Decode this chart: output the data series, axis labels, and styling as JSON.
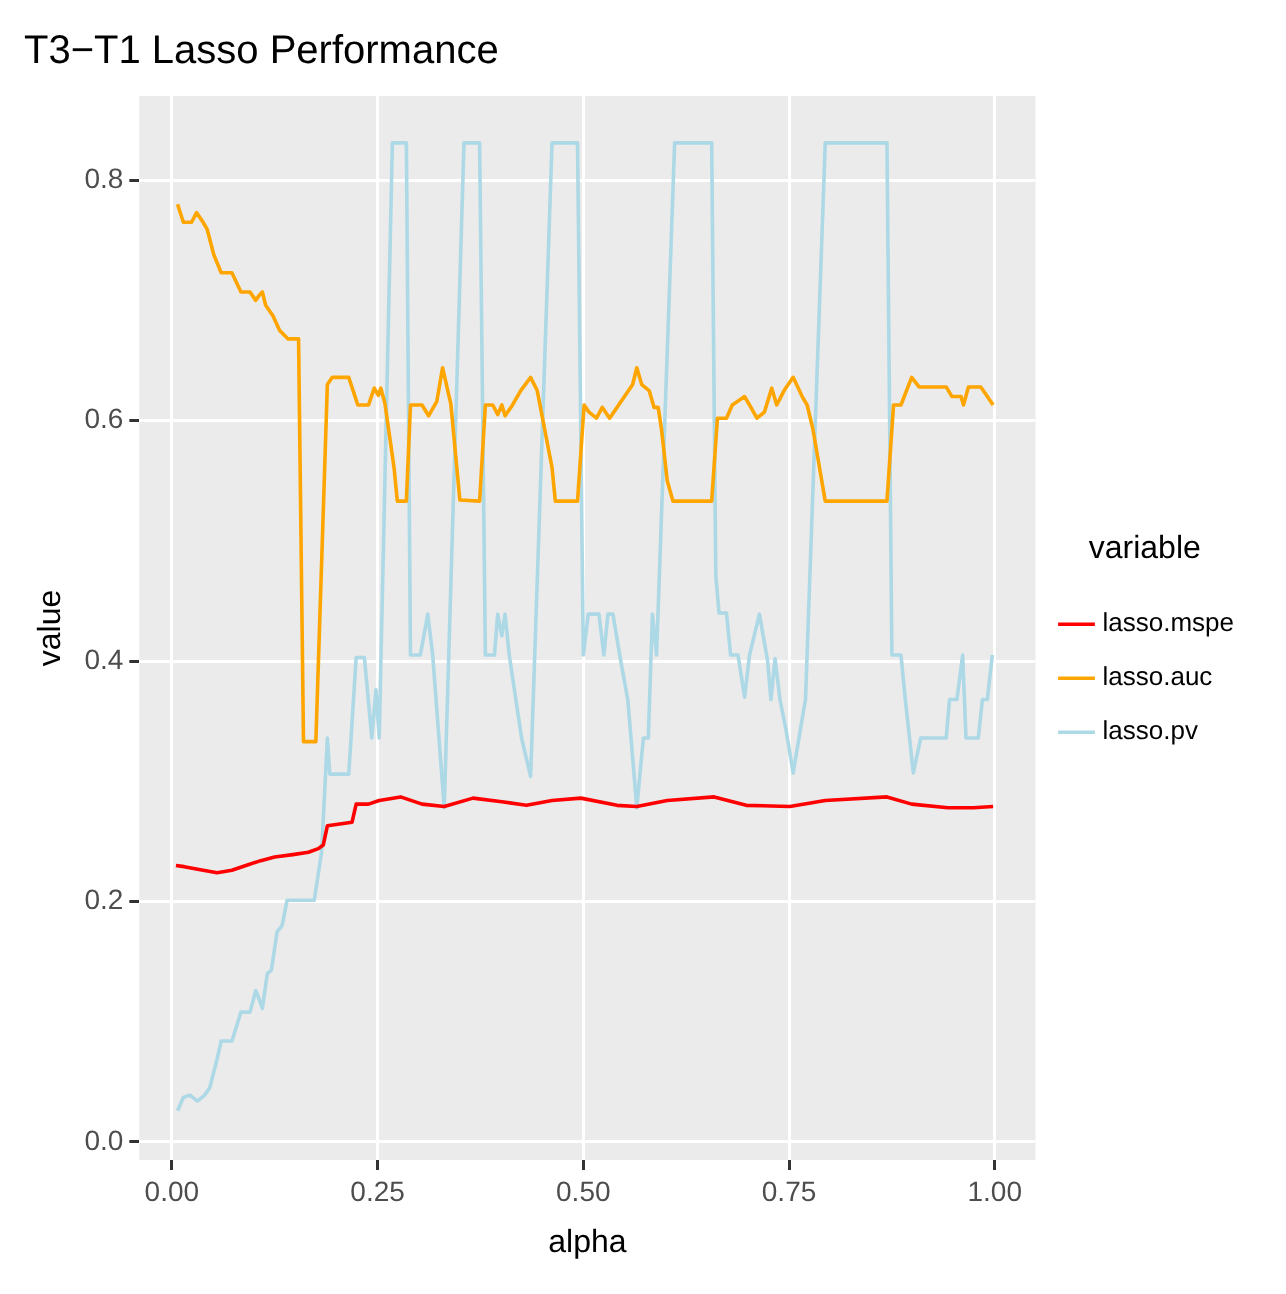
{
  "chart_data": {
    "type": "line",
    "title": "T3−T1 Lasso Performance",
    "xlabel": "alpha",
    "ylabel": "value",
    "legend_title": "variable",
    "legend": "right",
    "grid": true,
    "marker": "none",
    "xlim": [
      -0.0395,
      1.0495
    ],
    "ylim": [
      -0.015,
      0.87
    ],
    "xticks": [
      {
        "value": 0,
        "label": "0.00"
      },
      {
        "value": 0.25,
        "label": "0.25"
      },
      {
        "value": 0.5,
        "label": "0.50"
      },
      {
        "value": 0.75,
        "label": "0.75"
      },
      {
        "value": 1,
        "label": "1.00"
      }
    ],
    "yticks": [
      {
        "value": 0,
        "label": "0.0"
      },
      {
        "value": 0.2,
        "label": "0.2"
      },
      {
        "value": 0.4,
        "label": "0.4"
      },
      {
        "value": 0.6,
        "label": "0.6"
      },
      {
        "value": 0.8,
        "label": "0.8"
      }
    ],
    "series": [
      {
        "name": "lasso.mspe",
        "color": "#ff0000",
        "x": [
          0.005,
          0.015,
          0.038,
          0.055,
          0.073,
          0.09,
          0.108,
          0.125,
          0.147,
          0.166,
          0.178,
          0.184,
          0.189,
          0.219,
          0.224,
          0.239,
          0.252,
          0.278,
          0.304,
          0.331,
          0.366,
          0.401,
          0.431,
          0.462,
          0.497,
          0.541,
          0.565,
          0.602,
          0.659,
          0.698,
          0.751,
          0.794,
          0.869,
          0.899,
          0.943,
          0.974,
          0.998
        ],
        "values": [
          0.23,
          0.229,
          0.226,
          0.224,
          0.226,
          0.23,
          0.234,
          0.237,
          0.239,
          0.241,
          0.244,
          0.247,
          0.263,
          0.266,
          0.281,
          0.281,
          0.284,
          0.287,
          0.281,
          0.279,
          0.286,
          0.283,
          0.28,
          0.284,
          0.286,
          0.28,
          0.279,
          0.284,
          0.287,
          0.28,
          0.279,
          0.284,
          0.287,
          0.281,
          0.278,
          0.278,
          0.279
        ]
      },
      {
        "name": "lasso.auc",
        "color": "#ffa500",
        "x": [
          0.007,
          0.014,
          0.024,
          0.03,
          0.038,
          0.043,
          0.051,
          0.06,
          0.073,
          0.084,
          0.095,
          0.102,
          0.106,
          0.11,
          0.114,
          0.123,
          0.131,
          0.141,
          0.154,
          0.16,
          0.175,
          0.189,
          0.195,
          0.215,
          0.226,
          0.239,
          0.246,
          0.251,
          0.254,
          0.259,
          0.27,
          0.274,
          0.285,
          0.29,
          0.304,
          0.312,
          0.322,
          0.329,
          0.339,
          0.35,
          0.374,
          0.381,
          0.39,
          0.396,
          0.401,
          0.405,
          0.414,
          0.424,
          0.436,
          0.444,
          0.462,
          0.466,
          0.493,
          0.501,
          0.507,
          0.516,
          0.523,
          0.532,
          0.541,
          0.549,
          0.56,
          0.565,
          0.571,
          0.58,
          0.586,
          0.591,
          0.595,
          0.602,
          0.609,
          0.656,
          0.663,
          0.674,
          0.681,
          0.696,
          0.702,
          0.711,
          0.72,
          0.729,
          0.735,
          0.744,
          0.755,
          0.766,
          0.772,
          0.779,
          0.787,
          0.794,
          0.869,
          0.877,
          0.886,
          0.899,
          0.908,
          0.941,
          0.948,
          0.959,
          0.962,
          0.968,
          0.983,
          0.991,
          0.998
        ],
        "values": [
          0.78,
          0.765,
          0.765,
          0.773,
          0.765,
          0.759,
          0.738,
          0.723,
          0.723,
          0.707,
          0.707,
          0.7,
          0.704,
          0.707,
          0.696,
          0.687,
          0.675,
          0.668,
          0.668,
          0.333,
          0.333,
          0.63,
          0.636,
          0.636,
          0.613,
          0.613,
          0.627,
          0.621,
          0.627,
          0.614,
          0.561,
          0.533,
          0.533,
          0.613,
          0.613,
          0.604,
          0.616,
          0.644,
          0.614,
          0.534,
          0.533,
          0.613,
          0.613,
          0.605,
          0.613,
          0.604,
          0.613,
          0.625,
          0.636,
          0.625,
          0.561,
          0.533,
          0.533,
          0.613,
          0.607,
          0.602,
          0.611,
          0.602,
          0.611,
          0.619,
          0.63,
          0.644,
          0.63,
          0.625,
          0.611,
          0.611,
          0.593,
          0.55,
          0.533,
          0.533,
          0.602,
          0.602,
          0.613,
          0.62,
          0.613,
          0.602,
          0.607,
          0.627,
          0.613,
          0.625,
          0.636,
          0.62,
          0.613,
          0.593,
          0.561,
          0.533,
          0.533,
          0.613,
          0.613,
          0.636,
          0.628,
          0.628,
          0.62,
          0.62,
          0.613,
          0.628,
          0.628,
          0.62,
          0.613
        ]
      },
      {
        "name": "lasso.pv",
        "color": "#add8e6",
        "x": [
          0.007,
          0.014,
          0.022,
          0.031,
          0.04,
          0.046,
          0.055,
          0.06,
          0.073,
          0.084,
          0.095,
          0.102,
          0.106,
          0.11,
          0.116,
          0.121,
          0.128,
          0.134,
          0.14,
          0.173,
          0.182,
          0.189,
          0.192,
          0.215,
          0.224,
          0.234,
          0.243,
          0.248,
          0.252,
          0.268,
          0.285,
          0.29,
          0.302,
          0.311,
          0.317,
          0.331,
          0.355,
          0.374,
          0.381,
          0.392,
          0.396,
          0.401,
          0.405,
          0.41,
          0.425,
          0.436,
          0.462,
          0.493,
          0.5,
          0.506,
          0.519,
          0.525,
          0.53,
          0.536,
          0.545,
          0.554,
          0.558,
          0.565,
          0.573,
          0.579,
          0.584,
          0.589,
          0.611,
          0.656,
          0.661,
          0.665,
          0.674,
          0.679,
          0.688,
          0.696,
          0.702,
          0.714,
          0.724,
          0.728,
          0.733,
          0.739,
          0.746,
          0.755,
          0.764,
          0.77,
          0.794,
          0.869,
          0.875,
          0.886,
          0.891,
          0.901,
          0.91,
          0.941,
          0.945,
          0.954,
          0.961,
          0.965,
          0.98,
          0.985,
          0.991,
          0.997
        ],
        "values": [
          0.026,
          0.037,
          0.039,
          0.034,
          0.039,
          0.045,
          0.069,
          0.084,
          0.084,
          0.108,
          0.108,
          0.126,
          0.119,
          0.111,
          0.14,
          0.143,
          0.175,
          0.18,
          0.201,
          0.201,
          0.241,
          0.336,
          0.306,
          0.306,
          0.403,
          0.403,
          0.336,
          0.376,
          0.336,
          0.831,
          0.831,
          0.405,
          0.405,
          0.439,
          0.405,
          0.278,
          0.831,
          0.831,
          0.405,
          0.405,
          0.439,
          0.421,
          0.439,
          0.405,
          0.336,
          0.304,
          0.831,
          0.831,
          0.405,
          0.439,
          0.439,
          0.405,
          0.439,
          0.439,
          0.402,
          0.368,
          0.336,
          0.278,
          0.336,
          0.336,
          0.439,
          0.405,
          0.831,
          0.831,
          0.471,
          0.44,
          0.44,
          0.405,
          0.405,
          0.37,
          0.405,
          0.439,
          0.4,
          0.368,
          0.402,
          0.368,
          0.344,
          0.307,
          0.344,
          0.368,
          0.831,
          0.831,
          0.405,
          0.405,
          0.37,
          0.307,
          0.336,
          0.336,
          0.368,
          0.368,
          0.405,
          0.336,
          0.336,
          0.368,
          0.368,
          0.405
        ]
      }
    ]
  }
}
